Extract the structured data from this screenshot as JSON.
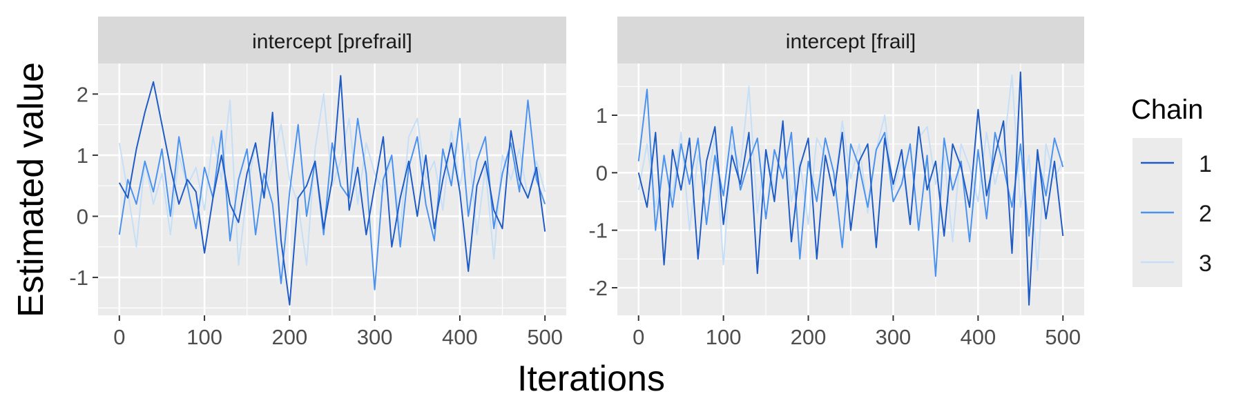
{
  "figure": {
    "ylabel": "Estimated value",
    "xlabel": "Iterations"
  },
  "legend": {
    "title": "Chain",
    "items": [
      {
        "label": "1",
        "color": "#1f5bc4"
      },
      {
        "label": "2",
        "color": "#4b92ee"
      },
      {
        "label": "3",
        "color": "#c6dff7"
      }
    ]
  },
  "chart_data": [
    {
      "type": "line",
      "title": "intercept [prefrail]",
      "xlim": [
        -25,
        525
      ],
      "ylim": [
        -1.62,
        2.5
      ],
      "x_ticks": [
        0,
        100,
        200,
        300,
        400,
        500
      ],
      "y_ticks": [
        -1,
        0,
        1,
        2
      ],
      "x_tick_labels": [
        "0",
        "100",
        "200",
        "300",
        "400",
        "500"
      ],
      "y_tick_labels": [
        "-1",
        "0",
        "1",
        "2"
      ],
      "grid": true,
      "series": [
        {
          "name": "1",
          "color": "#1f5bc4",
          "x": [
            0,
            10,
            20,
            30,
            40,
            50,
            60,
            70,
            80,
            90,
            100,
            110,
            120,
            130,
            140,
            150,
            160,
            170,
            180,
            190,
            200,
            210,
            220,
            230,
            240,
            250,
            260,
            270,
            280,
            290,
            300,
            310,
            320,
            330,
            340,
            350,
            360,
            370,
            380,
            390,
            400,
            410,
            420,
            430,
            440,
            450,
            460,
            470,
            480,
            490,
            500
          ],
          "y": [
            0.55,
            0.3,
            1.1,
            1.7,
            2.2,
            1.5,
            0.8,
            0.2,
            0.6,
            0.4,
            -0.6,
            0.3,
            1.0,
            0.2,
            -0.1,
            0.7,
            1.2,
            0.3,
            1.7,
            -0.4,
            -1.45,
            0.3,
            0.5,
            0.9,
            -0.2,
            0.6,
            2.3,
            0.1,
            0.8,
            -0.3,
            0.5,
            1.3,
            -0.5,
            0.3,
            0.9,
            0.0,
            1.0,
            -0.2,
            0.6,
            1.2,
            0.4,
            -0.9,
            0.5,
            0.9,
            0.1,
            -0.2,
            1.4,
            0.6,
            0.3,
            0.8,
            -0.25
          ]
        },
        {
          "name": "2",
          "color": "#4b92ee",
          "x": [
            0,
            10,
            20,
            30,
            40,
            50,
            60,
            70,
            80,
            90,
            100,
            110,
            120,
            130,
            140,
            150,
            160,
            170,
            180,
            190,
            200,
            210,
            220,
            230,
            240,
            250,
            260,
            270,
            280,
            290,
            300,
            310,
            320,
            330,
            340,
            350,
            360,
            370,
            380,
            390,
            400,
            410,
            420,
            430,
            440,
            450,
            460,
            470,
            480,
            490,
            500
          ],
          "y": [
            -0.3,
            0.6,
            0.2,
            0.9,
            0.4,
            1.1,
            0.0,
            1.3,
            0.5,
            -0.2,
            0.8,
            0.3,
            1.4,
            -0.4,
            0.6,
            1.1,
            -0.3,
            0.7,
            0.2,
            -1.1,
            0.4,
            1.5,
            0.0,
            0.9,
            -0.3,
            1.2,
            0.5,
            0.3,
            1.6,
            0.7,
            -1.2,
            0.6,
            1.0,
            -0.5,
            0.8,
            1.3,
            0.2,
            -0.4,
            1.1,
            0.5,
            1.6,
            0.0,
            0.9,
            1.3,
            -0.2,
            0.7,
            1.2,
            0.4,
            1.9,
            0.6,
            0.2
          ]
        },
        {
          "name": "3",
          "color": "#c6dff7",
          "x": [
            0,
            10,
            20,
            30,
            40,
            50,
            60,
            70,
            80,
            90,
            100,
            110,
            120,
            130,
            140,
            150,
            160,
            170,
            180,
            190,
            200,
            210,
            220,
            230,
            240,
            250,
            260,
            270,
            280,
            290,
            300,
            310,
            320,
            330,
            340,
            350,
            360,
            370,
            380,
            390,
            400,
            410,
            420,
            430,
            440,
            450,
            460,
            470,
            480,
            490,
            500
          ],
          "y": [
            1.2,
            0.4,
            -0.5,
            0.9,
            0.2,
            0.7,
            -0.3,
            1.0,
            0.5,
            0.8,
            0.1,
            1.3,
            0.6,
            1.9,
            -0.8,
            0.4,
            1.2,
            0.3,
            0.9,
            1.5,
            0.6,
            0.2,
            -0.8,
            1.1,
            2.0,
            0.5,
            0.9,
            1.6,
            0.2,
            1.2,
            0.7,
            0.4,
            1.0,
            -0.2,
            1.3,
            1.6,
            0.6,
            0.9,
            0.1,
            1.4,
            0.5,
            1.2,
            -0.3,
            0.8,
            -0.7,
            1.0,
            0.6,
            1.1,
            0.3,
            0.9,
            0.4
          ]
        }
      ]
    },
    {
      "type": "line",
      "title": "intercept [frail]",
      "xlim": [
        -25,
        525
      ],
      "ylim": [
        -2.48,
        1.9
      ],
      "x_ticks": [
        0,
        100,
        200,
        300,
        400,
        500
      ],
      "y_ticks": [
        -2,
        -1,
        0,
        1
      ],
      "x_tick_labels": [
        "0",
        "100",
        "200",
        "300",
        "400",
        "500"
      ],
      "y_tick_labels": [
        "-2",
        "-1",
        "0",
        "1"
      ],
      "grid": true,
      "series": [
        {
          "name": "1",
          "color": "#1f5bc4",
          "x": [
            0,
            10,
            20,
            30,
            40,
            50,
            60,
            70,
            80,
            90,
            100,
            110,
            120,
            130,
            140,
            150,
            160,
            170,
            180,
            190,
            200,
            210,
            220,
            230,
            240,
            250,
            260,
            270,
            280,
            290,
            300,
            310,
            320,
            330,
            340,
            350,
            360,
            370,
            380,
            390,
            400,
            410,
            420,
            430,
            440,
            450,
            460,
            470,
            480,
            490,
            500
          ],
          "y": [
            0.0,
            -0.6,
            0.7,
            -1.6,
            0.4,
            -0.3,
            0.6,
            -1.5,
            0.2,
            0.8,
            -0.9,
            0.3,
            -0.2,
            0.7,
            -1.75,
            0.4,
            -0.5,
            0.9,
            -1.2,
            0.1,
            0.6,
            -1.5,
            0.3,
            -0.4,
            0.7,
            -1.0,
            0.2,
            0.5,
            -1.3,
            0.6,
            -0.2,
            0.4,
            -0.9,
            0.8,
            -0.3,
            0.2,
            -1.1,
            0.5,
            0.1,
            -0.6,
            1.1,
            -0.4,
            0.3,
            0.9,
            -1.4,
            1.75,
            -2.3,
            0.4,
            -0.8,
            0.2,
            -1.1
          ]
        },
        {
          "name": "2",
          "color": "#4b92ee",
          "x": [
            0,
            10,
            20,
            30,
            40,
            50,
            60,
            70,
            80,
            90,
            100,
            110,
            120,
            130,
            140,
            150,
            160,
            170,
            180,
            190,
            200,
            210,
            220,
            230,
            240,
            250,
            260,
            270,
            280,
            290,
            300,
            310,
            320,
            330,
            340,
            350,
            360,
            370,
            380,
            390,
            400,
            410,
            420,
            430,
            440,
            450,
            460,
            470,
            480,
            490,
            500
          ],
          "y": [
            0.2,
            1.45,
            -1.0,
            0.3,
            -0.6,
            0.5,
            -0.2,
            0.6,
            -0.9,
            0.3,
            -0.4,
            0.8,
            -0.3,
            0.2,
            0.6,
            -0.8,
            0.4,
            -0.1,
            0.7,
            -1.5,
            0.2,
            -0.5,
            0.6,
            0.0,
            -1.3,
            0.5,
            0.1,
            -0.6,
            0.4,
            0.7,
            -0.5,
            -0.2,
            0.5,
            -1.0,
            0.3,
            -1.8,
            0.6,
            -0.3,
            0.2,
            -1.2,
            0.4,
            -0.8,
            0.7,
            0.1,
            -0.6,
            0.5,
            -1.1,
            0.3,
            -0.4,
            0.6,
            0.1
          ]
        },
        {
          "name": "3",
          "color": "#c6dff7",
          "x": [
            0,
            10,
            20,
            30,
            40,
            50,
            60,
            70,
            80,
            90,
            100,
            110,
            120,
            130,
            140,
            150,
            160,
            170,
            180,
            190,
            200,
            210,
            220,
            230,
            240,
            250,
            260,
            270,
            280,
            290,
            300,
            310,
            320,
            330,
            340,
            350,
            360,
            370,
            380,
            390,
            400,
            410,
            420,
            430,
            440,
            450,
            460,
            470,
            480,
            490,
            500
          ],
          "y": [
            -0.3,
            0.5,
            -0.6,
            0.2,
            -0.4,
            0.7,
            -1.0,
            0.3,
            -0.2,
            0.6,
            -1.6,
            0.5,
            0.1,
            1.5,
            -0.7,
            0.4,
            -0.3,
            0.8,
            -0.5,
            0.2,
            -0.9,
            0.6,
            0.3,
            -0.4,
            0.9,
            -0.1,
            0.5,
            -0.7,
            0.4,
            1.0,
            -0.3,
            0.2,
            -0.9,
            0.6,
            0.8,
            -0.2,
            0.3,
            -1.2,
            0.5,
            0.1,
            -0.5,
            0.7,
            -0.2,
            0.4,
            1.7,
            -0.6,
            0.3,
            -1.7,
            0.5,
            -0.1,
            0.2
          ]
        }
      ]
    }
  ]
}
